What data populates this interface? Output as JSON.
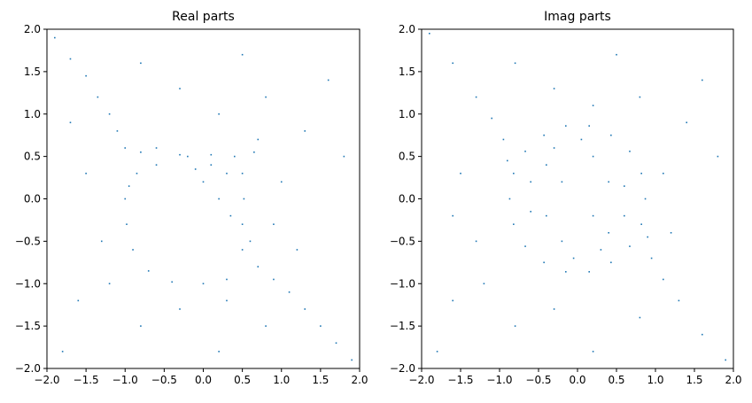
{
  "chart_data": [
    {
      "type": "scatter",
      "title": "Real parts",
      "color": "#1f77b4",
      "x": [
        -1.9,
        -1.7,
        -1.5,
        -1.35,
        -1.2,
        -1.1,
        -1.0,
        -0.8,
        -0.6,
        -0.3,
        1.9,
        1.7,
        1.5,
        1.3,
        1.1,
        0.9,
        0.7,
        0.6,
        0.7,
        0.65,
        -1.0,
        -0.98,
        -0.9,
        -0.7,
        -0.4,
        0,
        0.3,
        0.5,
        0.5,
        0.52,
        0.5,
        0.4,
        0.1,
        -0.2,
        -0.6,
        -0.85,
        -0.95,
        0,
        0.2,
        0.3,
        0.1,
        0.35,
        -0.1,
        -1.5,
        -1.3,
        -1.6,
        -0.8,
        -0.3,
        0.2,
        0.8,
        1.2,
        1.0,
        1.3,
        0.8,
        0.2,
        -0.3,
        -0.8,
        0.5,
        1.6,
        -1.8,
        1.8,
        -1.7,
        0.9,
        -1.2,
        0.3
      ],
      "y": [
        1.9,
        1.65,
        1.45,
        1.2,
        1.0,
        0.8,
        0.6,
        0.55,
        0.6,
        0.52,
        -1.9,
        -1.7,
        -1.5,
        -1.3,
        -1.1,
        -0.95,
        -0.8,
        -0.5,
        0.7,
        0.55,
        0,
        -0.3,
        -0.6,
        -0.85,
        -0.98,
        -1.0,
        -0.95,
        -0.6,
        -0.3,
        0,
        0.3,
        0.5,
        0.52,
        0.5,
        0.4,
        0.3,
        0.15,
        0.2,
        0,
        0.3,
        0.4,
        -0.2,
        0.35,
        0.3,
        -0.5,
        -1.2,
        -1.5,
        -1.3,
        -1.8,
        -1.5,
        -0.6,
        0.2,
        0.8,
        1.2,
        1.0,
        1.3,
        1.6,
        1.7,
        1.4,
        -1.8,
        0.5,
        0.9,
        -0.3,
        -1.0,
        -1.2
      ],
      "xlim": [
        -2,
        2
      ],
      "ylim": [
        -2,
        2
      ],
      "xticks": [
        {
          "value": -2,
          "label": "−2.0"
        },
        {
          "value": -1.5,
          "label": "−1.5"
        },
        {
          "value": -1,
          "label": "−1.0"
        },
        {
          "value": -0.5,
          "label": "−0.5"
        },
        {
          "value": 0,
          "label": "0.0"
        },
        0.5,
        {
          "value": 1,
          "label": "1.0"
        },
        1.5,
        {
          "value": 2,
          "label": "2.0"
        }
      ],
      "yticks": [
        {
          "value": -2,
          "label": "−2.0"
        },
        {
          "value": -1.5,
          "label": "−1.5"
        },
        {
          "value": -1,
          "label": "−1.0"
        },
        {
          "value": -0.5,
          "label": "−0.5"
        },
        {
          "value": 0,
          "label": "0.0"
        },
        0.5,
        {
          "value": 1,
          "label": "1.0"
        },
        1.5,
        {
          "value": 2,
          "label": "2.0"
        }
      ]
    },
    {
      "type": "scatter",
      "title": "Imag parts",
      "color": "#1f77b4",
      "x": [
        -1.9,
        -1.6,
        -1.3,
        -1.1,
        -0.95,
        -0.9,
        1.9,
        1.6,
        1.3,
        1.1,
        0.95,
        0.9,
        0.87,
        0.82,
        0.67,
        0.43,
        0.15,
        -0.15,
        -0.43,
        -0.67,
        -0.82,
        -0.87,
        -0.82,
        -0.67,
        -0.43,
        -0.15,
        0.15,
        0.43,
        0.67,
        0.82,
        -0.4,
        -0.2,
        -0.6,
        -0.3,
        0.4,
        0.2,
        0.6,
        0.3,
        0.4,
        0.6,
        0.2,
        0.05,
        -0.4,
        -0.6,
        -0.2,
        -0.05,
        -1.5,
        -1.3,
        -1.6,
        -0.8,
        -0.3,
        0.2,
        0.8,
        1.2,
        1.1,
        1.4,
        0.8,
        0.2,
        -0.3,
        -0.8,
        0.5,
        1.6,
        -1.8,
        1.8,
        -1.6,
        -1.2
      ],
      "y": [
        1.95,
        1.6,
        1.2,
        0.95,
        0.7,
        0.45,
        -1.9,
        -1.6,
        -1.2,
        -0.95,
        -0.7,
        -0.45,
        0,
        0.3,
        0.56,
        0.75,
        0.86,
        0.86,
        0.75,
        0.56,
        0.3,
        0,
        -0.3,
        -0.56,
        -0.75,
        -0.86,
        -0.86,
        -0.75,
        -0.56,
        -0.3,
        0.4,
        0.2,
        0.2,
        0.6,
        -0.4,
        -0.2,
        -0.2,
        -0.6,
        0.2,
        0.15,
        0.5,
        0.7,
        -0.2,
        -0.15,
        -0.5,
        -0.7,
        0.3,
        -0.5,
        -1.2,
        -1.5,
        -1.3,
        -1.8,
        -1.4,
        -0.4,
        0.3,
        0.9,
        1.2,
        1.1,
        1.3,
        1.6,
        1.7,
        1.4,
        -1.8,
        0.5,
        -0.2,
        -1.0
      ],
      "xlim": [
        -2,
        2
      ],
      "ylim": [
        -2,
        2
      ],
      "xticks": [
        {
          "value": -2,
          "label": "−2.0"
        },
        {
          "value": -1.5,
          "label": "−1.5"
        },
        {
          "value": -1,
          "label": "−1.0"
        },
        {
          "value": -0.5,
          "label": "−0.5"
        },
        {
          "value": 0,
          "label": "0.0"
        },
        0.5,
        {
          "value": 1,
          "label": "1.0"
        },
        1.5,
        {
          "value": 2,
          "label": "2.0"
        }
      ],
      "yticks": [
        {
          "value": -2,
          "label": "−2.0"
        },
        {
          "value": -1.5,
          "label": "−1.5"
        },
        {
          "value": -1,
          "label": "−1.0"
        },
        {
          "value": -0.5,
          "label": "−0.5"
        },
        {
          "value": 0,
          "label": "0.0"
        },
        0.5,
        {
          "value": 1,
          "label": "1.0"
        },
        1.5,
        {
          "value": 2,
          "label": "2.0"
        }
      ]
    }
  ]
}
